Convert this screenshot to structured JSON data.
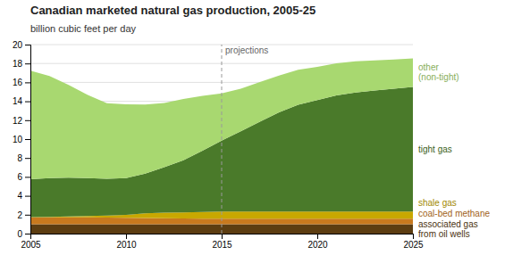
{
  "chart_data": {
    "type": "area",
    "stacked": true,
    "title": "Canadian marketed natural gas production, 2005-25",
    "y_label": "billion cubic feet per day",
    "x": [
      2005,
      2006,
      2007,
      2008,
      2009,
      2010,
      2011,
      2012,
      2013,
      2014,
      2015,
      2016,
      2017,
      2018,
      2019,
      2020,
      2021,
      2022,
      2023,
      2024,
      2025
    ],
    "series": [
      {
        "name": "associated gas\nfrom oil wells",
        "color": "#5c3d11",
        "values": [
          1.0,
          1.0,
          1.0,
          1.0,
          1.0,
          1.0,
          1.0,
          1.0,
          1.0,
          1.0,
          1.0,
          1.0,
          1.0,
          1.0,
          1.0,
          1.0,
          1.0,
          1.0,
          1.0,
          1.0,
          1.0
        ]
      },
      {
        "name": "coal-bed methane",
        "color": "#c8791e",
        "values": [
          0.7,
          0.72,
          0.72,
          0.72,
          0.7,
          0.68,
          0.65,
          0.62,
          0.6,
          0.58,
          0.58,
          0.58,
          0.58,
          0.58,
          0.58,
          0.58,
          0.58,
          0.58,
          0.58,
          0.58,
          0.58
        ]
      },
      {
        "name": "shale gas",
        "color": "#c8a800",
        "values": [
          0.05,
          0.05,
          0.1,
          0.15,
          0.2,
          0.3,
          0.5,
          0.6,
          0.65,
          0.7,
          0.75,
          0.75,
          0.75,
          0.75,
          0.75,
          0.75,
          0.75,
          0.75,
          0.75,
          0.75,
          0.75
        ]
      },
      {
        "name": "tight gas",
        "color": "#4a7a2a",
        "values": [
          4.0,
          4.1,
          4.1,
          4.0,
          3.9,
          3.9,
          4.2,
          4.8,
          5.5,
          6.5,
          7.5,
          8.5,
          9.5,
          10.5,
          11.3,
          11.8,
          12.3,
          12.6,
          12.8,
          13.0,
          13.2
        ]
      },
      {
        "name": "other\n(non-tight)",
        "color": "#a8d870",
        "values": [
          11.5,
          10.8,
          9.8,
          8.8,
          8.0,
          7.8,
          7.3,
          6.8,
          6.5,
          5.8,
          5.0,
          4.5,
          4.2,
          3.9,
          3.7,
          3.5,
          3.4,
          3.3,
          3.2,
          3.1,
          3.0
        ]
      }
    ],
    "annotations": [
      {
        "text": "projections",
        "x": 2015
      }
    ],
    "xlim": [
      2005,
      2025
    ],
    "xticks": [
      2005,
      2010,
      2015,
      2020,
      2025
    ],
    "ylim": [
      0,
      20
    ],
    "yticks": [
      0,
      2,
      4,
      6,
      8,
      10,
      12,
      14,
      16,
      18,
      20
    ],
    "grid": true
  }
}
